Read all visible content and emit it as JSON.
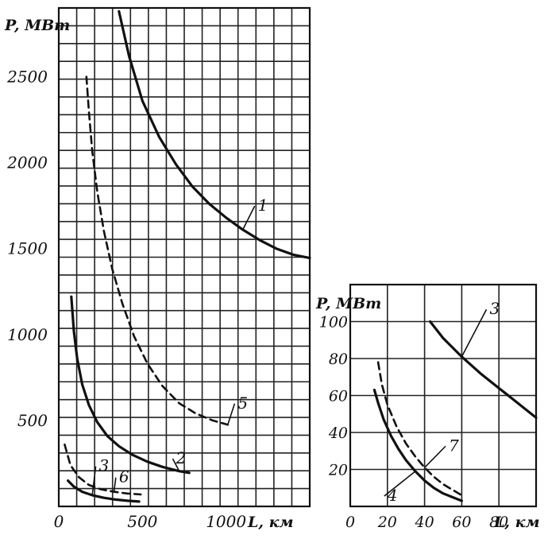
{
  "chart_data": [
    {
      "type": "line",
      "title": "",
      "ylabel": "P, МВт",
      "xlabel": "L, км",
      "xlim": [
        0,
        1500
      ],
      "ylim": [
        0,
        2900
      ],
      "grid": true,
      "x_ticks": [
        {
          "value": 0,
          "label": "0"
        },
        {
          "value": 500,
          "label": "500"
        },
        {
          "value": 1000,
          "label": "1000"
        }
      ],
      "y_ticks": [
        {
          "value": 500,
          "label": "500"
        },
        {
          "value": 1000,
          "label": "1000"
        },
        {
          "value": 1500,
          "label": "1500"
        },
        {
          "value": 2000,
          "label": "2000"
        },
        {
          "value": 2500,
          "label": "2500"
        }
      ],
      "series": [
        {
          "name": "1",
          "dashed": false,
          "label_at": [
            1190,
            1720
          ],
          "x": [
            360,
            420,
            500,
            600,
            700,
            800,
            900,
            1000,
            1100,
            1200,
            1300,
            1400,
            1500
          ],
          "y": [
            2880,
            2620,
            2360,
            2150,
            1990,
            1860,
            1760,
            1680,
            1610,
            1550,
            1500,
            1465,
            1445
          ]
        },
        {
          "name": "5",
          "dashed": true,
          "label_at": [
            1070,
            570
          ],
          "x": [
            165,
            180,
            200,
            230,
            270,
            320,
            380,
            450,
            530,
            620,
            720,
            820,
            920,
            1010
          ],
          "y": [
            2500,
            2300,
            2070,
            1830,
            1600,
            1380,
            1180,
            990,
            830,
            700,
            600,
            540,
            500,
            475
          ]
        },
        {
          "name": "2",
          "dashed": false,
          "label_at": [
            700,
            250
          ],
          "x": [
            75,
            90,
            110,
            140,
            180,
            230,
            290,
            360,
            440,
            530,
            620,
            720,
            780
          ],
          "y": [
            1220,
            1020,
            860,
            710,
            590,
            490,
            410,
            350,
            300,
            260,
            230,
            205,
            195
          ]
        },
        {
          "name": "3",
          "dashed": false,
          "label_at": [
            240,
            205
          ],
          "x": [
            55,
            90,
            140,
            200,
            270,
            340,
            410,
            480
          ],
          "y": [
            150,
            115,
            85,
            65,
            50,
            40,
            33,
            28
          ]
        },
        {
          "name": "6",
          "dashed": true,
          "label_at": [
            360,
            140
          ],
          "x": [
            35,
            70,
            120,
            180,
            250,
            330,
            410,
            490
          ],
          "y": [
            360,
            240,
            170,
            125,
            100,
            85,
            75,
            70
          ]
        }
      ]
    },
    {
      "type": "line",
      "title": "",
      "ylabel": "P, МВт",
      "xlabel": "L, км",
      "xlim": [
        0,
        100
      ],
      "ylim": [
        0,
        120
      ],
      "grid": true,
      "x_ticks": [
        {
          "value": 0,
          "label": "0"
        },
        {
          "value": 20,
          "label": "20"
        },
        {
          "value": 40,
          "label": "40"
        },
        {
          "value": 60,
          "label": "60"
        },
        {
          "value": 80,
          "label": "80"
        }
      ],
      "y_ticks": [
        {
          "value": 20,
          "label": "20"
        },
        {
          "value": 40,
          "label": "40"
        },
        {
          "value": 60,
          "label": "60"
        },
        {
          "value": 80,
          "label": "80"
        },
        {
          "value": 100,
          "label": "100"
        }
      ],
      "series": [
        {
          "name": "3",
          "dashed": false,
          "label_at": [
            75,
            104
          ],
          "x": [
            43,
            50,
            60,
            70,
            80,
            90,
            100
          ],
          "y": [
            100,
            91,
            81,
            72,
            64,
            56,
            48
          ]
        },
        {
          "name": "7",
          "dashed": true,
          "label_at": [
            53,
            30
          ],
          "x": [
            15,
            17,
            20,
            25,
            30,
            35,
            40,
            45,
            50,
            55,
            60
          ],
          "y": [
            78,
            66,
            55,
            43,
            34,
            27,
            21,
            16,
            12,
            9,
            6
          ]
        },
        {
          "name": "4",
          "dashed": false,
          "label_at": [
            20,
            3
          ],
          "x": [
            13,
            15,
            18,
            22,
            26,
            30,
            35,
            40,
            45,
            50,
            55,
            60
          ],
          "y": [
            63,
            56,
            47,
            38,
            31,
            25,
            19,
            14,
            10,
            7,
            5,
            3
          ]
        }
      ]
    }
  ]
}
